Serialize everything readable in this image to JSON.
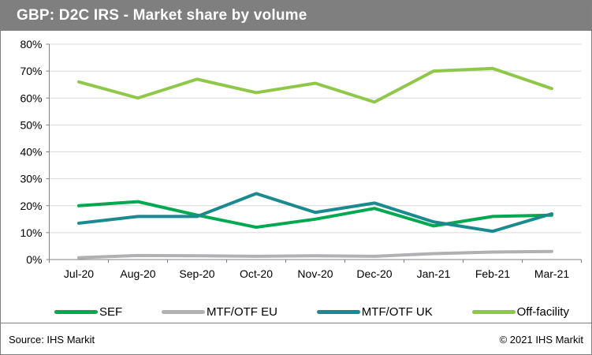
{
  "header": {
    "title": "GBP: D2C IRS - Market share by volume"
  },
  "chart_data": {
    "type": "line",
    "title": "GBP: D2C IRS - Market share by volume",
    "categories": [
      "Jul-20",
      "Aug-20",
      "Sep-20",
      "Oct-20",
      "Nov-20",
      "Dec-20",
      "Jan-21",
      "Feb-21",
      "Mar-21"
    ],
    "series": [
      {
        "name": "SEF",
        "color": "#00A84F",
        "values": [
          20,
          21.5,
          16.5,
          12,
          15,
          19,
          12.5,
          16,
          16.5
        ]
      },
      {
        "name": "MTF/OTF EU",
        "color": "#B1B1B4",
        "values": [
          0.7,
          1.5,
          1.4,
          1.2,
          1.4,
          1.2,
          2.2,
          2.8,
          3.0
        ]
      },
      {
        "name": "MTF/OTF UK",
        "color": "#1B8A8E",
        "values": [
          13.5,
          16,
          16,
          24.5,
          17.5,
          21,
          14,
          10.5,
          17
        ]
      },
      {
        "name": "Off-facility",
        "color": "#8FC849",
        "values": [
          66,
          60,
          67,
          62,
          65.5,
          58.5,
          70,
          71,
          63.5
        ]
      }
    ],
    "ylim": [
      0,
      80
    ],
    "y_tick_step": 10,
    "y_tick_labels": [
      "0%",
      "10%",
      "20%",
      "30%",
      "40%",
      "50%",
      "60%",
      "70%",
      "80%"
    ],
    "xlabel": "",
    "ylabel": "",
    "grid": true,
    "legend_position": "bottom"
  },
  "footer": {
    "source": "Source: IHS Markit",
    "copyright": "© 2021 IHS Markit"
  },
  "colors": {
    "title_bar_bg": "#7F7F7F",
    "title_text": "#FFFFFF",
    "grid_line": "#D9D9D9",
    "axis_line": "#808080",
    "tick_label": "#000000",
    "frame_border": "#808080"
  }
}
